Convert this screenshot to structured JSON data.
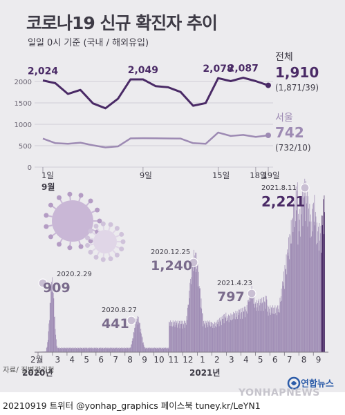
{
  "header": {
    "title": "코로나19 신규 확진자 추이",
    "subtitle": "일일 0시 기준 (국내 / 해외유입)"
  },
  "footer": {
    "source": "자료/ 질병관리청",
    "text": "20210919 트위터 @yonhap_graphics  페이스북 tuney.kr/LeYN1",
    "logo_text": "연합뉴스",
    "logo_sub": "YONHAPNEWS"
  },
  "colors": {
    "total": "#4a2a66",
    "seoul": "#9d8ab3",
    "bars": "#9d8ab3",
    "bars_dark": "#4a2a66",
    "background": "#ecebee"
  },
  "chart_data": [
    {
      "type": "line",
      "x_ticks": [
        "1일",
        "9일",
        "15일",
        "18일",
        "19일"
      ],
      "x_tick_days": [
        1,
        9,
        15,
        18,
        19
      ],
      "month_label": "9월",
      "ylim": [
        0,
        2000
      ],
      "y_ticks": [
        0,
        500,
        1000,
        1500,
        2000
      ],
      "grid": true,
      "series": [
        {
          "name": "전체",
          "x": [
            1,
            2,
            3,
            4,
            5,
            6,
            7,
            8,
            9,
            10,
            11,
            12,
            13,
            14,
            15,
            16,
            17,
            18,
            19
          ],
          "values": [
            2024,
            1960,
            1709,
            1803,
            1489,
            1374,
            1597,
            2049,
            2049,
            1892,
            1865,
            1755,
            1433,
            1495,
            2078,
            2008,
            2087,
            2008,
            1910
          ],
          "labels": [
            {
              "day": 1,
              "text": "2,024"
            },
            {
              "day": 9,
              "text": "2,049"
            },
            {
              "day": 15,
              "text": "2,078"
            },
            {
              "day": 17,
              "text": "2,087"
            }
          ],
          "final_label": "1,910",
          "final_sub": "(1,871/39)"
        },
        {
          "name": "서울",
          "x": [
            1,
            2,
            3,
            4,
            5,
            6,
            7,
            8,
            9,
            10,
            11,
            12,
            13,
            14,
            15,
            16,
            17,
            18,
            19
          ],
          "values": [
            667,
            560,
            545,
            570,
            510,
            460,
            483,
            671,
            675,
            673,
            670,
            667,
            560,
            544,
            808,
            728,
            752,
            706,
            742
          ],
          "final_label": "742",
          "final_sub": "(732/10)"
        }
      ]
    },
    {
      "type": "bar",
      "x_ticks": [
        "2월",
        "3",
        "4",
        "5",
        "6",
        "7",
        "8",
        "9",
        "10",
        "11",
        "12",
        "1",
        "2",
        "3",
        "4",
        "5",
        "6",
        "7",
        "8",
        "9"
      ],
      "year_labels": [
        "2020년",
        "2021년"
      ],
      "annotations": [
        {
          "date": "2020.2.29",
          "value": "909"
        },
        {
          "date": "2020.8.27",
          "value": "441"
        },
        {
          "date": "2020.12.25",
          "value": "1,240"
        },
        {
          "date": "2021.4.23",
          "value": "797"
        },
        {
          "date": "2021.8.11",
          "value": "2,221"
        }
      ],
      "ylim": [
        0,
        2300
      ]
    }
  ]
}
